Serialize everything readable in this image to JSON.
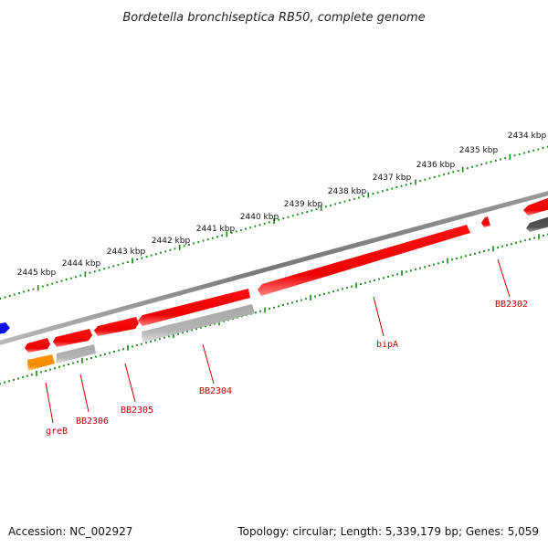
{
  "title": "Bordetella bronchiseptica RB50, complete genome",
  "footer": {
    "accession": "Accession: NC_002927",
    "stats": "Topology: circular; Length: 5,339,179 bp; Genes: 5,059"
  },
  "ticks": [
    {
      "label": "2434 kbp"
    },
    {
      "label": "2435 kbp"
    },
    {
      "label": "2436 kbp"
    },
    {
      "label": "2437 kbp"
    },
    {
      "label": "2438 kbp"
    },
    {
      "label": "2439 kbp"
    },
    {
      "label": "2440 kbp"
    },
    {
      "label": "2441 kbp"
    },
    {
      "label": "2442 kbp"
    },
    {
      "label": "2443 kbp"
    },
    {
      "label": "2444 kbp"
    },
    {
      "label": "2445 kbp"
    }
  ],
  "genes": [
    {
      "label": "greB"
    },
    {
      "label": "BB2306"
    },
    {
      "label": "BB2305"
    },
    {
      "label": "BB2304"
    },
    {
      "label": "bipA"
    },
    {
      "label": "BB2302"
    }
  ],
  "colors": {
    "forward_gene": "#ff0000",
    "reverse_gene": "#b0b0b0",
    "rna_gene": "#ff9900",
    "highlight_gene": "#1010ee",
    "dark_gene": "#555555",
    "backbone": "#888888",
    "tick": "#118811",
    "label": "#cc0000"
  }
}
